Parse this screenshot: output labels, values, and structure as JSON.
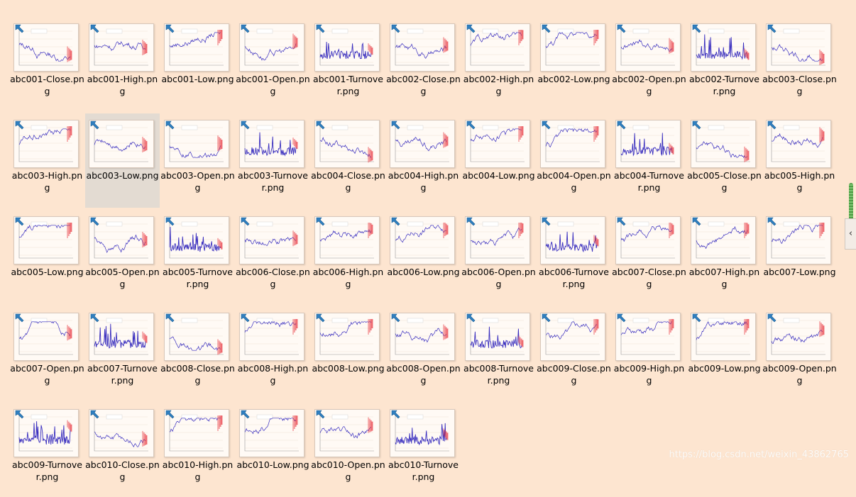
{
  "files": [
    {
      "name": "abc001-Close.png",
      "kind": "price"
    },
    {
      "name": "abc001-High.png",
      "kind": "price"
    },
    {
      "name": "abc001-Low.png",
      "kind": "price"
    },
    {
      "name": "abc001-Open.png",
      "kind": "price"
    },
    {
      "name": "abc001-Turnover.png",
      "kind": "turnover"
    },
    {
      "name": "abc002-Close.png",
      "kind": "price"
    },
    {
      "name": "abc002-High.png",
      "kind": "price"
    },
    {
      "name": "abc002-Low.png",
      "kind": "price"
    },
    {
      "name": "abc002-Open.png",
      "kind": "price"
    },
    {
      "name": "abc002-Turnover.png",
      "kind": "turnover"
    },
    {
      "name": "abc003-Close.png",
      "kind": "price"
    },
    {
      "name": "abc003-High.png",
      "kind": "price"
    },
    {
      "name": "abc003-Low.png",
      "kind": "price",
      "selected": true
    },
    {
      "name": "abc003-Open.png",
      "kind": "price"
    },
    {
      "name": "abc003-Turnover.png",
      "kind": "turnover"
    },
    {
      "name": "abc004-Close.png",
      "kind": "price"
    },
    {
      "name": "abc004-High.png",
      "kind": "price"
    },
    {
      "name": "abc004-Low.png",
      "kind": "price"
    },
    {
      "name": "abc004-Open.png",
      "kind": "price"
    },
    {
      "name": "abc004-Turnover.png",
      "kind": "turnover"
    },
    {
      "name": "abc005-Close.png",
      "kind": "price"
    },
    {
      "name": "abc005-High.png",
      "kind": "price"
    },
    {
      "name": "abc005-Low.png",
      "kind": "price"
    },
    {
      "name": "abc005-Open.png",
      "kind": "price"
    },
    {
      "name": "abc005-Turnover.png",
      "kind": "turnover"
    },
    {
      "name": "abc006-Close.png",
      "kind": "price"
    },
    {
      "name": "abc006-High.png",
      "kind": "price"
    },
    {
      "name": "abc006-Low.png",
      "kind": "price"
    },
    {
      "name": "abc006-Open.png",
      "kind": "price"
    },
    {
      "name": "abc006-Turnover.png",
      "kind": "turnover"
    },
    {
      "name": "abc007-Close.png",
      "kind": "price"
    },
    {
      "name": "abc007-High.png",
      "kind": "price"
    },
    {
      "name": "abc007-Low.png",
      "kind": "price"
    },
    {
      "name": "abc007-Open.png",
      "kind": "price"
    },
    {
      "name": "abc007-Turnover.png",
      "kind": "turnover"
    },
    {
      "name": "abc008-Close.png",
      "kind": "price"
    },
    {
      "name": "abc008-High.png",
      "kind": "price"
    },
    {
      "name": "abc008-Low.png",
      "kind": "price"
    },
    {
      "name": "abc008-Open.png",
      "kind": "price"
    },
    {
      "name": "abc008-Turnover.png",
      "kind": "turnover"
    },
    {
      "name": "abc009-Close.png",
      "kind": "price"
    },
    {
      "name": "abc009-High.png",
      "kind": "price"
    },
    {
      "name": "abc009-Low.png",
      "kind": "price"
    },
    {
      "name": "abc009-Open.png",
      "kind": "price"
    },
    {
      "name": "abc009-Turnover.png",
      "kind": "turnover"
    },
    {
      "name": "abc010-Close.png",
      "kind": "price"
    },
    {
      "name": "abc010-High.png",
      "kind": "price"
    },
    {
      "name": "abc010-Low.png",
      "kind": "price"
    },
    {
      "name": "abc010-Open.png",
      "kind": "price"
    },
    {
      "name": "abc010-Turnover.png",
      "kind": "turnover"
    }
  ],
  "watermark": "https://blog.csdn.net/weixin_43862765",
  "icons": {
    "pin": "pin-icon",
    "collapse": "chevron-left-icon"
  },
  "colors": {
    "background": "#fde5d0",
    "selected": "#e3dbd2",
    "series_line": "#3a2fbf",
    "prediction": "#e8303a",
    "pin": "#2f7fc0",
    "scroll_thumb": "#4f9d45"
  }
}
